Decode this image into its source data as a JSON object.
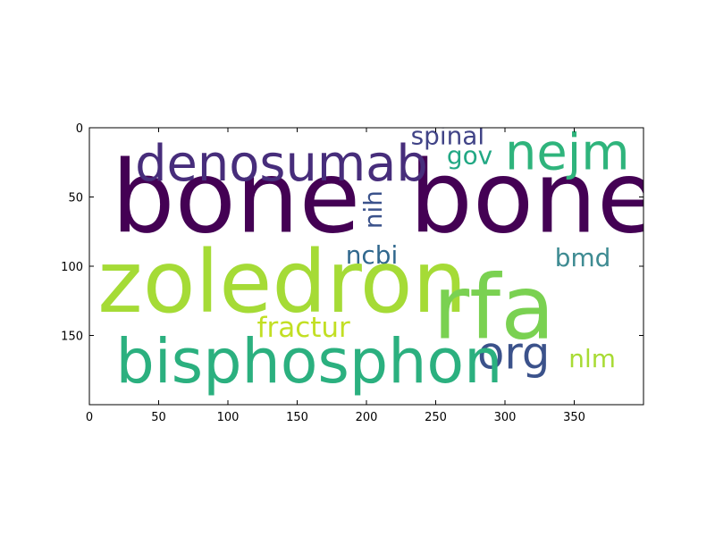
{
  "chart_data": {
    "type": "wordcloud",
    "title": "",
    "xlabel": "",
    "ylabel": "",
    "xlim": [
      0,
      400
    ],
    "ylim": [
      200,
      0
    ],
    "x_ticks": [
      0,
      50,
      100,
      150,
      200,
      250,
      300,
      350
    ],
    "y_ticks": [
      0,
      50,
      100,
      150
    ],
    "grid": false,
    "legend": "none",
    "words": [
      {
        "text": "bone",
        "x": 16,
        "y": 75,
        "size": 72,
        "rotate": 0,
        "color": "#440154"
      },
      {
        "text": "bone",
        "x": 231,
        "y": 75,
        "size": 72,
        "rotate": 0,
        "color": "#440154"
      },
      {
        "text": "denosumab",
        "x": 33,
        "y": 38,
        "size": 36,
        "rotate": 0,
        "color": "#472d7b"
      },
      {
        "text": "nejm",
        "x": 300,
        "y": 30,
        "size": 36,
        "rotate": 0,
        "color": "#2fb47c"
      },
      {
        "text": "spinal",
        "x": 232,
        "y": 12,
        "size": 18,
        "rotate": 0,
        "color": "#414487"
      },
      {
        "text": "gov",
        "x": 258,
        "y": 26,
        "size": 18,
        "rotate": 0,
        "color": "#22a884"
      },
      {
        "text": "nih",
        "x": 211,
        "y": 73,
        "size": 18,
        "rotate": -90,
        "color": "#3b528b"
      },
      {
        "text": "ncbi",
        "x": 185,
        "y": 98,
        "size": 18,
        "rotate": 0,
        "color": "#31688e"
      },
      {
        "text": "bmd",
        "x": 336,
        "y": 100,
        "size": 18,
        "rotate": 0,
        "color": "#3e8b92"
      },
      {
        "text": "zoledron",
        "x": 6,
        "y": 133,
        "size": 62,
        "rotate": 0,
        "color": "#a5db36"
      },
      {
        "text": "rfa",
        "x": 248,
        "y": 152,
        "size": 64,
        "rotate": 0,
        "color": "#7ad151"
      },
      {
        "text": "fractur",
        "x": 121,
        "y": 151,
        "size": 20,
        "rotate": 0,
        "color": "#c2df23"
      },
      {
        "text": "org",
        "x": 280,
        "y": 174,
        "size": 32,
        "rotate": 0,
        "color": "#3b528b"
      },
      {
        "text": "bisphosphon",
        "x": 19,
        "y": 184,
        "size": 44,
        "rotate": 0,
        "color": "#2bb07f"
      },
      {
        "text": "nlm",
        "x": 346,
        "y": 173,
        "size": 18,
        "rotate": 0,
        "color": "#a8db34"
      }
    ]
  }
}
